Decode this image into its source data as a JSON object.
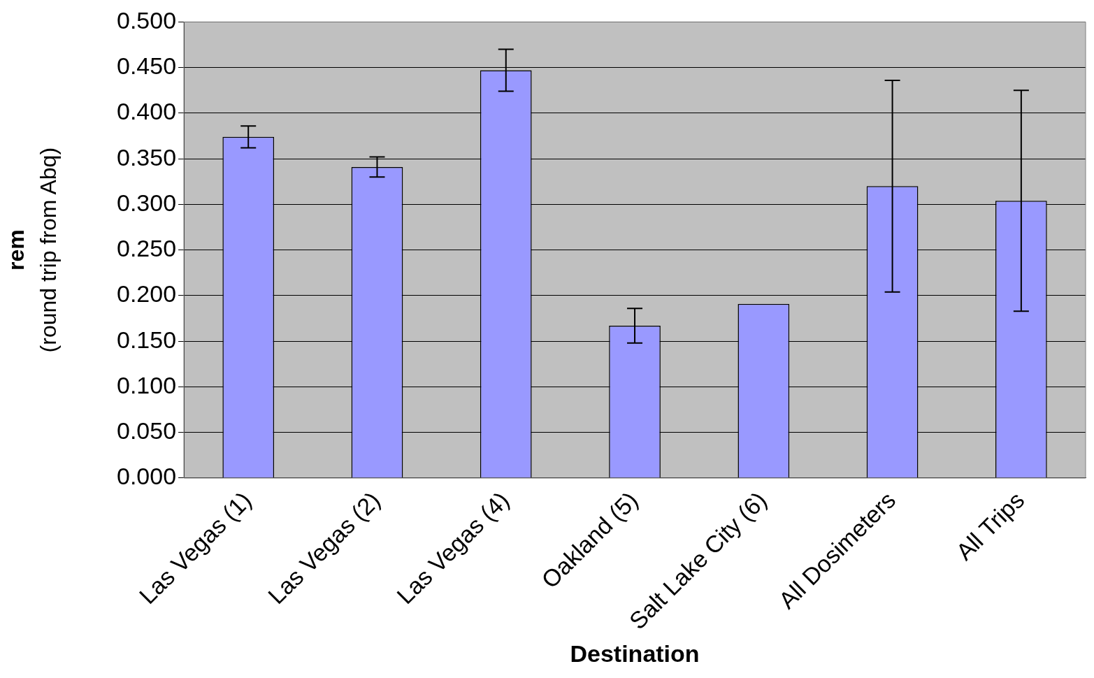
{
  "chart_data": {
    "type": "bar",
    "xlabel": "Destination",
    "ylabel": "rem\n(round trip from Abq)",
    "categories": [
      "Las Vegas (1)",
      "Las Vegas (2)",
      "Las Vegas (4)",
      "Oakland (5)",
      "Salt Lake City (6)",
      "All Dosimeters",
      "All Trips"
    ],
    "values": [
      0.374,
      0.341,
      0.447,
      0.167,
      0.191,
      0.32,
      0.304
    ],
    "errors": [
      0.012,
      0.011,
      0.023,
      0.019,
      null,
      0.116,
      0.121
    ],
    "color": "#9999ff",
    "ylim": [
      0,
      0.5
    ],
    "yticks": [
      {
        "value": 0,
        "label": "0.000"
      },
      {
        "value": 0.05,
        "label": "0.050"
      },
      {
        "value": 0.1,
        "label": "0.100"
      },
      {
        "value": 0.15,
        "label": "0.150"
      },
      {
        "value": 0.2,
        "label": "0.200"
      },
      {
        "value": 0.25,
        "label": "0.250"
      },
      {
        "value": 0.3,
        "label": "0.300"
      },
      {
        "value": 0.35,
        "label": "0.350"
      },
      {
        "value": 0.4,
        "label": "0.400"
      },
      {
        "value": 0.45,
        "label": "0.450"
      },
      {
        "value": 0.5,
        "label": "0.500"
      }
    ],
    "grid": "y",
    "legend": false
  }
}
